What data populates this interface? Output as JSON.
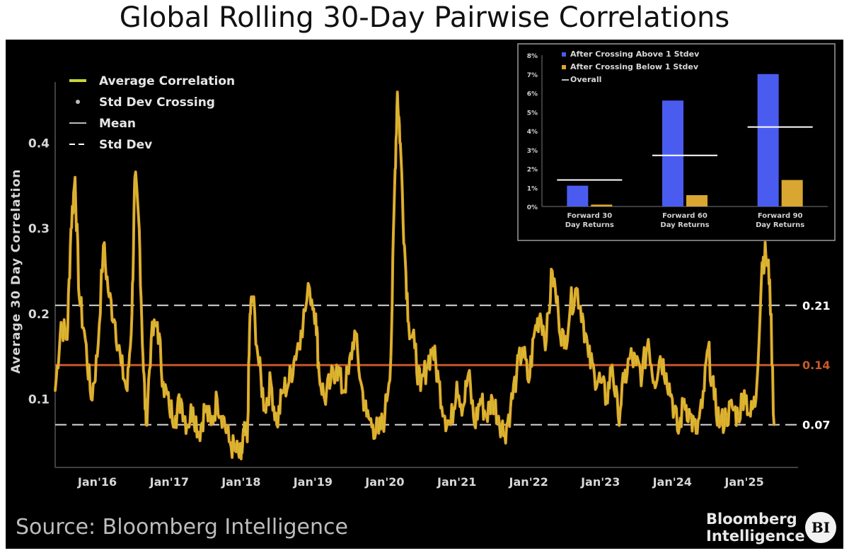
{
  "page": {
    "title": "Global Rolling 30-Day Pairwise Correlations",
    "source": "Source: Bloomberg Intelligence",
    "brand_line1": "Bloomberg",
    "brand_line2": "Intelligence",
    "brand_badge": "BI"
  },
  "colors": {
    "background": "#000000",
    "line": "#e0a32a",
    "line_highlight": "#c9d43a",
    "mean": "#c8582a",
    "std": "#d9d9d9",
    "inset_blue": "#4a5cf0",
    "inset_gold": "#d9a631",
    "inset_overall": "#ffffff"
  },
  "chart_data": [
    {
      "type": "line",
      "title": "Global Rolling 30-Day Pairwise Correlations",
      "ylabel": "Average 30 Day Correlation",
      "xlabel": "",
      "xlim": [
        "2015-06",
        "2025-10"
      ],
      "ylim": [
        0.02,
        0.48
      ],
      "x_ticks": [
        "Jan'16",
        "Jan'17",
        "Jan'18",
        "Jan'19",
        "Jan'20",
        "Jan'21",
        "Jan'22",
        "Jan'23",
        "Jan'24",
        "Jan'25"
      ],
      "y_ticks": [
        0.1,
        0.2,
        0.3,
        0.4
      ],
      "grid": false,
      "legend": {
        "placement": "top-left",
        "entries": [
          "Average Correlation",
          "Std Dev Crossing",
          "Mean",
          "Std Dev"
        ]
      },
      "reference_lines": [
        {
          "name": "Std Dev",
          "value": 0.21,
          "label": "0.21",
          "style": "dashed"
        },
        {
          "name": "Mean",
          "value": 0.14,
          "label": "0.14",
          "style": "solid"
        },
        {
          "name": "Std Dev",
          "value": 0.07,
          "label": "0.07",
          "style": "dashed"
        }
      ],
      "series": [
        {
          "name": "Average Correlation",
          "points": [
            [
              "2015-06-01",
              0.11
            ],
            [
              "2015-07-01",
              0.19
            ],
            [
              "2015-08-01",
              0.17
            ],
            [
              "2015-08-20",
              0.3
            ],
            [
              "2015-09-10",
              0.36
            ],
            [
              "2015-10-01",
              0.22
            ],
            [
              "2015-11-01",
              0.17
            ],
            [
              "2015-12-01",
              0.1
            ],
            [
              "2016-01-01",
              0.15
            ],
            [
              "2016-02-01",
              0.28
            ],
            [
              "2016-03-01",
              0.22
            ],
            [
              "2016-04-01",
              0.19
            ],
            [
              "2016-05-01",
              0.14
            ],
            [
              "2016-06-01",
              0.11
            ],
            [
              "2016-06-25",
              0.2
            ],
            [
              "2016-07-10",
              0.36
            ],
            [
              "2016-08-01",
              0.3
            ],
            [
              "2016-08-20",
              0.15
            ],
            [
              "2016-09-05",
              0.07
            ],
            [
              "2016-10-01",
              0.17
            ],
            [
              "2016-11-01",
              0.19
            ],
            [
              "2016-12-01",
              0.12
            ],
            [
              "2017-01-01",
              0.09
            ],
            [
              "2017-02-01",
              0.08
            ],
            [
              "2017-03-01",
              0.1
            ],
            [
              "2017-04-01",
              0.07
            ],
            [
              "2017-05-01",
              0.09
            ],
            [
              "2017-06-01",
              0.06
            ],
            [
              "2017-07-01",
              0.09
            ],
            [
              "2017-08-01",
              0.07
            ],
            [
              "2017-09-01",
              0.1
            ],
            [
              "2017-10-01",
              0.08
            ],
            [
              "2017-11-01",
              0.05
            ],
            [
              "2017-12-01",
              0.04
            ],
            [
              "2018-01-01",
              0.03
            ],
            [
              "2018-01-15",
              0.06
            ],
            [
              "2018-02-01",
              0.05
            ],
            [
              "2018-02-15",
              0.2
            ],
            [
              "2018-03-01",
              0.22
            ],
            [
              "2018-04-01",
              0.14
            ],
            [
              "2018-05-01",
              0.09
            ],
            [
              "2018-06-01",
              0.12
            ],
            [
              "2018-07-01",
              0.07
            ],
            [
              "2018-08-01",
              0.11
            ],
            [
              "2018-09-01",
              0.12
            ],
            [
              "2018-10-01",
              0.15
            ],
            [
              "2018-11-01",
              0.18
            ],
            [
              "2018-12-15",
              0.23
            ],
            [
              "2019-01-15",
              0.2
            ],
            [
              "2019-02-01",
              0.13
            ],
            [
              "2019-03-01",
              0.1
            ],
            [
              "2019-04-01",
              0.12
            ],
            [
              "2019-05-01",
              0.14
            ],
            [
              "2019-06-01",
              0.11
            ],
            [
              "2019-07-01",
              0.13
            ],
            [
              "2019-08-01",
              0.18
            ],
            [
              "2019-09-01",
              0.12
            ],
            [
              "2019-10-01",
              0.08
            ],
            [
              "2019-11-01",
              0.07
            ],
            [
              "2019-12-01",
              0.06
            ],
            [
              "2020-01-01",
              0.08
            ],
            [
              "2020-02-01",
              0.15
            ],
            [
              "2020-02-20",
              0.35
            ],
            [
              "2020-03-05",
              0.46
            ],
            [
              "2020-03-20",
              0.4
            ],
            [
              "2020-04-10",
              0.28
            ],
            [
              "2020-05-01",
              0.19
            ],
            [
              "2020-06-01",
              0.16
            ],
            [
              "2020-07-01",
              0.11
            ],
            [
              "2020-08-01",
              0.14
            ],
            [
              "2020-09-01",
              0.16
            ],
            [
              "2020-10-01",
              0.12
            ],
            [
              "2020-11-01",
              0.08
            ],
            [
              "2020-12-01",
              0.07
            ],
            [
              "2021-01-01",
              0.12
            ],
            [
              "2021-02-01",
              0.09
            ],
            [
              "2021-03-01",
              0.13
            ],
            [
              "2021-04-01",
              0.07
            ],
            [
              "2021-05-01",
              0.1
            ],
            [
              "2021-06-01",
              0.08
            ],
            [
              "2021-07-01",
              0.1
            ],
            [
              "2021-08-01",
              0.08
            ],
            [
              "2021-09-01",
              0.06
            ],
            [
              "2021-10-01",
              0.09
            ],
            [
              "2021-11-01",
              0.13
            ],
            [
              "2021-12-01",
              0.16
            ],
            [
              "2022-01-01",
              0.12
            ],
            [
              "2022-02-01",
              0.18
            ],
            [
              "2022-03-01",
              0.2
            ],
            [
              "2022-04-01",
              0.17
            ],
            [
              "2022-05-01",
              0.25
            ],
            [
              "2022-06-01",
              0.2
            ],
            [
              "2022-07-01",
              0.16
            ],
            [
              "2022-08-01",
              0.21
            ],
            [
              "2022-09-01",
              0.23
            ],
            [
              "2022-10-01",
              0.2
            ],
            [
              "2022-11-01",
              0.15
            ],
            [
              "2022-12-01",
              0.13
            ],
            [
              "2023-01-01",
              0.12
            ],
            [
              "2023-02-01",
              0.1
            ],
            [
              "2023-03-01",
              0.14
            ],
            [
              "2023-04-01",
              0.08
            ],
            [
              "2023-05-01",
              0.12
            ],
            [
              "2023-06-01",
              0.15
            ],
            [
              "2023-07-01",
              0.14
            ],
            [
              "2023-08-01",
              0.13
            ],
            [
              "2023-09-01",
              0.17
            ],
            [
              "2023-10-01",
              0.12
            ],
            [
              "2023-11-01",
              0.15
            ],
            [
              "2023-12-01",
              0.13
            ],
            [
              "2024-01-01",
              0.1
            ],
            [
              "2024-02-01",
              0.06
            ],
            [
              "2024-03-01",
              0.1
            ],
            [
              "2024-04-01",
              0.08
            ],
            [
              "2024-05-01",
              0.06
            ],
            [
              "2024-06-01",
              0.09
            ],
            [
              "2024-07-01",
              0.16
            ],
            [
              "2024-08-01",
              0.1
            ],
            [
              "2024-09-01",
              0.07
            ],
            [
              "2024-10-01",
              0.08
            ],
            [
              "2024-11-01",
              0.09
            ],
            [
              "2024-12-01",
              0.08
            ],
            [
              "2025-01-01",
              0.11
            ],
            [
              "2025-02-01",
              0.08
            ],
            [
              "2025-03-01",
              0.1
            ],
            [
              "2025-04-01",
              0.26
            ],
            [
              "2025-04-20",
              0.27
            ],
            [
              "2025-05-10",
              0.24
            ],
            [
              "2025-06-01",
              0.07
            ]
          ]
        }
      ]
    },
    {
      "type": "bar",
      "categories": [
        "Forward 30 Day Returns",
        "Forward 60 Day Returns",
        "Forward 90 Day Returns"
      ],
      "y_ticks": [
        "0%",
        "1%",
        "2%",
        "3%",
        "4%",
        "5%",
        "6%",
        "7%",
        "8%"
      ],
      "ylim": [
        0,
        8
      ],
      "legend": {
        "placement": "top-left",
        "entries": [
          "After Crossing Above 1 Stdev",
          "After Crossing Below 1 Stdev",
          "Overall"
        ]
      },
      "series": [
        {
          "name": "After Crossing Above 1 Stdev",
          "values": [
            1.1,
            5.6,
            7.0
          ]
        },
        {
          "name": "After Crossing Below 1 Stdev",
          "values": [
            0.1,
            0.6,
            1.4
          ]
        },
        {
          "name": "Overall",
          "values": [
            1.4,
            2.7,
            4.2
          ]
        }
      ]
    }
  ]
}
